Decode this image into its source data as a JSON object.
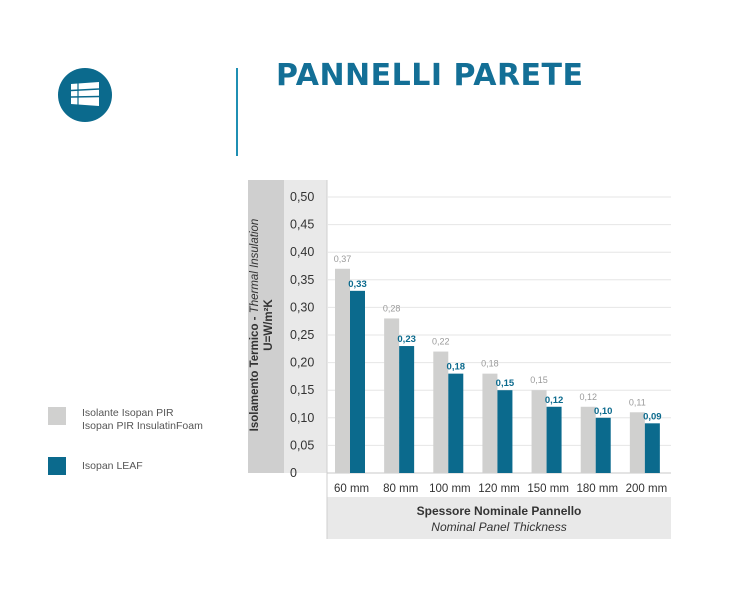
{
  "header": {
    "title": "PANNELLI PARETE"
  },
  "colors": {
    "accent": "#136f96",
    "brand_dark": "#0b6a8d",
    "pir": "#d0d0cf",
    "leaf": "#0b6a8d",
    "panel": "#e9e9e9",
    "y_panel": "#cfcfcf"
  },
  "icons": {
    "logo": "wall-panel-logo-icon"
  },
  "legend": {
    "pir_line1": "Isolante Isopan PIR",
    "pir_line2": "Isopan PIR InsulatinFoam",
    "leaf": "Isopan LEAF"
  },
  "chart_data": {
    "type": "bar",
    "categories": [
      "60 mm",
      "80 mm",
      "100 mm",
      "120 mm",
      "150 mm",
      "180 mm",
      "200 mm"
    ],
    "series": [
      {
        "name": "Isolante Isopan PIR / Isopan PIR InsulatinFoam",
        "values": [
          0.37,
          0.28,
          0.22,
          0.18,
          0.15,
          0.12,
          0.11
        ],
        "labels": [
          "0,37",
          "0,28",
          "0,22",
          "0,18",
          "0,15",
          "0,12",
          "0,11"
        ]
      },
      {
        "name": "Isopan LEAF",
        "values": [
          0.33,
          0.23,
          0.18,
          0.15,
          0.12,
          0.1,
          0.09
        ],
        "labels": [
          "0,33",
          "0,23",
          "0,18",
          "0,15",
          "0,12",
          "0,10",
          "0,09"
        ]
      }
    ],
    "yticks": [
      "0",
      "0,05",
      "0,10",
      "0,15",
      "0,20",
      "0,25",
      "0,30",
      "0,35",
      "0,40",
      "0,45",
      "0,50"
    ],
    "ylim": [
      0,
      0.5
    ],
    "ylabel_main": "Isolamento Termico - ",
    "ylabel_italic": "Thermal Insulation",
    "ylabel_unit": "U=W/m²K",
    "xlabel_main": "Spessore Nominale Pannello",
    "xlabel_italic": "Nominal Panel Thickness",
    "grid": true
  }
}
